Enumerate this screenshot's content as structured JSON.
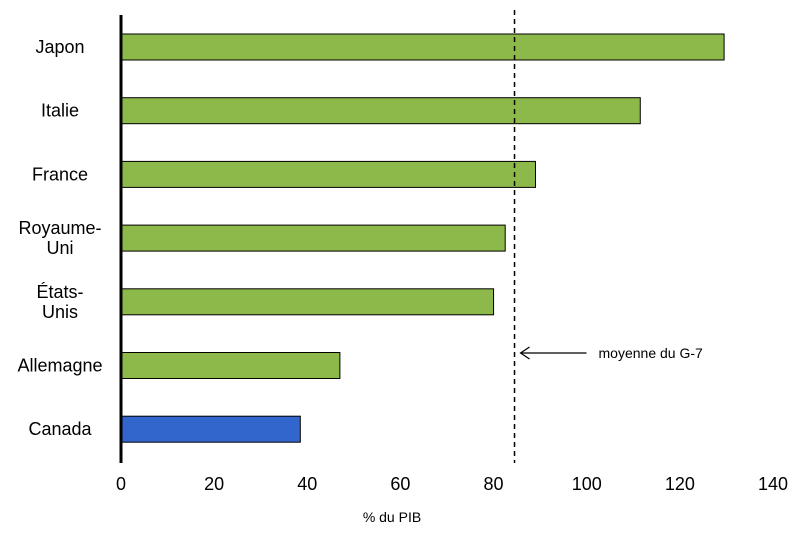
{
  "chart_data": {
    "type": "bar",
    "orientation": "horizontal",
    "categories": [
      "Japon",
      "Italie",
      "France",
      "Royaume-Uni",
      "États-Unis",
      "Allemagne",
      "Canada"
    ],
    "category_label_lines": [
      [
        "Japon"
      ],
      [
        "Italie"
      ],
      [
        "France"
      ],
      [
        "Royaume-",
        "Uni"
      ],
      [
        "États-",
        "Unis"
      ],
      [
        "Allemagne"
      ],
      [
        "Canada"
      ]
    ],
    "values": [
      129.5,
      111.5,
      89,
      82.5,
      80,
      47,
      38.5
    ],
    "bar_colors": [
      "#8db84a",
      "#8db84a",
      "#8db84a",
      "#8db84a",
      "#8db84a",
      "#8db84a",
      "#3366cc"
    ],
    "xlabel": "% du PIB",
    "xlim": [
      0,
      140
    ],
    "xticks": [
      "0",
      "20",
      "40",
      "60",
      "80",
      "100",
      "120",
      "140"
    ],
    "grid": false,
    "reference_line": {
      "value": 84.5,
      "style": "dashed",
      "label": "moyenne du G-7"
    }
  }
}
